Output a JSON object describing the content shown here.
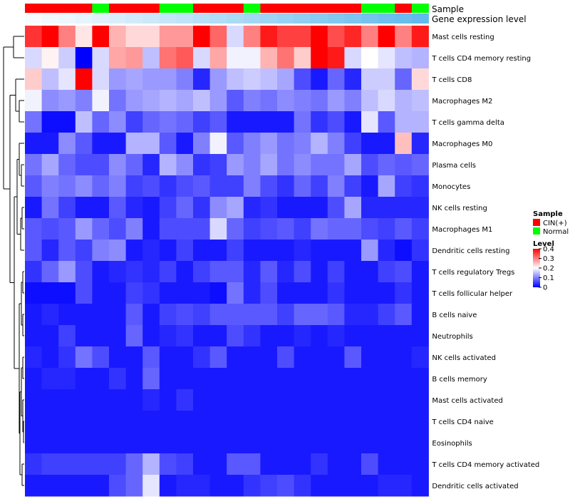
{
  "chart_data": {
    "type": "heatmap",
    "title": "",
    "annotation_tracks": [
      {
        "name": "Sample",
        "values": [
          "CIN(+)",
          "CIN(+)",
          "CIN(+)",
          "CIN(+)",
          "Normal",
          "CIN(+)",
          "CIN(+)",
          "CIN(+)",
          "Normal",
          "Normal",
          "CIN(+)",
          "CIN(+)",
          "CIN(+)",
          "Normal",
          "CIN(+)",
          "CIN(+)",
          "CIN(+)",
          "CIN(+)",
          "CIN(+)",
          "CIN(+)",
          "Normal",
          "Normal",
          "CIN(+)",
          "Normal"
        ]
      },
      {
        "name": "Gene expression level",
        "values": [
          0.05,
          0.08,
          0.11,
          0.15,
          0.19,
          0.23,
          0.27,
          0.31,
          0.35,
          0.39,
          0.43,
          0.47,
          0.51,
          0.55,
          0.59,
          0.63,
          0.67,
          0.71,
          0.75,
          0.79,
          0.83,
          0.87,
          0.91,
          0.95
        ]
      }
    ],
    "rows": [
      "Mast cells resting",
      "T cells CD4 memory resting",
      "T cells CD8",
      "Macrophages M2",
      "T cells gamma delta",
      "Macrophages M0",
      "Plasma cells",
      "Monocytes",
      "NK cells resting",
      "Macrophages M1",
      "Dendritic cells resting",
      "T cells regulatory  Tregs",
      "T cells follicular helper",
      "B cells naive",
      "Neutrophils",
      "NK cells activated",
      "B cells memory",
      "Mast cells activated",
      "T cells CD4 naive",
      "Eosinophils",
      "T cells CD4 memory activated",
      "Dendritic cells activated"
    ],
    "matrix": [
      [
        0.36,
        0.4,
        0.3,
        0.22,
        0.4,
        0.26,
        0.23,
        0.23,
        0.28,
        0.28,
        0.4,
        0.32,
        0.17,
        0.3,
        0.38,
        0.35,
        0.35,
        0.4,
        0.34,
        0.37,
        0.3,
        0.4,
        0.3,
        0.38
      ],
      [
        0.17,
        0.21,
        0.16,
        0.0,
        0.17,
        0.27,
        0.28,
        0.15,
        0.31,
        0.33,
        0.17,
        0.27,
        0.19,
        0.19,
        0.26,
        0.31,
        0.24,
        0.4,
        0.38,
        0.17,
        0.2,
        0.18,
        0.15,
        0.14
      ],
      [
        0.24,
        0.15,
        0.18,
        0.4,
        0.17,
        0.12,
        0.13,
        0.12,
        0.12,
        0.1,
        0.03,
        0.12,
        0.15,
        0.16,
        0.15,
        0.13,
        0.06,
        0.02,
        0.08,
        0.03,
        0.16,
        0.16,
        0.08,
        0.23
      ],
      [
        0.19,
        0.11,
        0.12,
        0.1,
        0.19,
        0.09,
        0.12,
        0.13,
        0.14,
        0.13,
        0.15,
        0.12,
        0.07,
        0.1,
        0.09,
        0.11,
        0.1,
        0.09,
        0.12,
        0.1,
        0.15,
        0.17,
        0.14,
        0.15
      ],
      [
        0.09,
        0.01,
        0.01,
        0.15,
        0.08,
        0.11,
        0.05,
        0.08,
        0.09,
        0.08,
        0.05,
        0.07,
        0.02,
        0.02,
        0.02,
        0.02,
        0.09,
        0.04,
        0.06,
        0.02,
        0.18,
        0.07,
        0.14,
        0.14
      ],
      [
        0.02,
        0.02,
        0.11,
        0.07,
        0.02,
        0.02,
        0.14,
        0.14,
        0.07,
        0.02,
        0.1,
        0.19,
        0.07,
        0.1,
        0.12,
        0.09,
        0.1,
        0.14,
        0.1,
        0.05,
        0.02,
        0.02,
        0.25,
        0.03
      ],
      [
        0.09,
        0.13,
        0.08,
        0.06,
        0.06,
        0.11,
        0.08,
        0.03,
        0.14,
        0.11,
        0.04,
        0.05,
        0.12,
        0.1,
        0.13,
        0.09,
        0.11,
        0.09,
        0.09,
        0.13,
        0.06,
        0.08,
        0.07,
        0.08
      ],
      [
        0.07,
        0.1,
        0.09,
        0.11,
        0.08,
        0.1,
        0.05,
        0.06,
        0.04,
        0.06,
        0.07,
        0.05,
        0.05,
        0.1,
        0.06,
        0.04,
        0.08,
        0.05,
        0.1,
        0.05,
        0.02,
        0.13,
        0.05,
        0.04
      ],
      [
        0.02,
        0.09,
        0.05,
        0.02,
        0.02,
        0.07,
        0.03,
        0.02,
        0.05,
        0.08,
        0.04,
        0.11,
        0.13,
        0.03,
        0.04,
        0.02,
        0.02,
        0.02,
        0.06,
        0.13,
        0.03,
        0.03,
        0.03,
        0.03
      ],
      [
        0.07,
        0.06,
        0.07,
        0.12,
        0.08,
        0.06,
        0.1,
        0.02,
        0.06,
        0.06,
        0.06,
        0.17,
        0.08,
        0.05,
        0.06,
        0.07,
        0.05,
        0.09,
        0.08,
        0.08,
        0.06,
        0.05,
        0.07,
        0.05
      ],
      [
        0.07,
        0.03,
        0.07,
        0.05,
        0.1,
        0.11,
        0.02,
        0.03,
        0.02,
        0.05,
        0.02,
        0.02,
        0.05,
        0.02,
        0.02,
        0.02,
        0.03,
        0.02,
        0.02,
        0.02,
        0.12,
        0.03,
        0.01,
        0.04
      ],
      [
        0.04,
        0.08,
        0.12,
        0.06,
        0.02,
        0.03,
        0.04,
        0.03,
        0.05,
        0.02,
        0.05,
        0.07,
        0.07,
        0.03,
        0.07,
        0.03,
        0.06,
        0.02,
        0.05,
        0.02,
        0.02,
        0.05,
        0.06,
        0.02
      ],
      [
        0.01,
        0.01,
        0.01,
        0.06,
        0.02,
        0.02,
        0.05,
        0.04,
        0.02,
        0.02,
        0.02,
        0.01,
        0.09,
        0.03,
        0.06,
        0.02,
        0.02,
        0.02,
        0.04,
        0.02,
        0.02,
        0.02,
        0.04,
        0.02
      ],
      [
        0.02,
        0.03,
        0.02,
        0.02,
        0.02,
        0.02,
        0.07,
        0.02,
        0.05,
        0.06,
        0.05,
        0.07,
        0.07,
        0.07,
        0.07,
        0.05,
        0.08,
        0.08,
        0.07,
        0.03,
        0.03,
        0.05,
        0.07,
        0.02
      ],
      [
        0.02,
        0.02,
        0.05,
        0.02,
        0.02,
        0.02,
        0.08,
        0.02,
        0.03,
        0.04,
        0.02,
        0.02,
        0.06,
        0.04,
        0.02,
        0.02,
        0.03,
        0.02,
        0.03,
        0.02,
        0.02,
        0.02,
        0.02,
        0.02
      ],
      [
        0.03,
        0.02,
        0.04,
        0.09,
        0.06,
        0.02,
        0.02,
        0.07,
        0.02,
        0.02,
        0.04,
        0.07,
        0.02,
        0.02,
        0.02,
        0.06,
        0.02,
        0.02,
        0.02,
        0.07,
        0.02,
        0.02,
        0.02,
        0.03
      ],
      [
        0.02,
        0.03,
        0.03,
        0.02,
        0.02,
        0.04,
        0.02,
        0.08,
        0.02,
        0.02,
        0.02,
        0.02,
        0.02,
        0.02,
        0.02,
        0.02,
        0.02,
        0.02,
        0.02,
        0.02,
        0.02,
        0.02,
        0.02,
        0.02
      ],
      [
        0.02,
        0.02,
        0.02,
        0.02,
        0.02,
        0.02,
        0.02,
        0.03,
        0.02,
        0.04,
        0.02,
        0.02,
        0.02,
        0.02,
        0.02,
        0.02,
        0.02,
        0.02,
        0.02,
        0.02,
        0.02,
        0.02,
        0.02,
        0.02
      ],
      [
        0.02,
        0.02,
        0.02,
        0.02,
        0.02,
        0.02,
        0.02,
        0.02,
        0.02,
        0.02,
        0.02,
        0.02,
        0.02,
        0.02,
        0.02,
        0.02,
        0.02,
        0.02,
        0.02,
        0.02,
        0.02,
        0.02,
        0.02,
        0.02
      ],
      [
        0.02,
        0.02,
        0.02,
        0.02,
        0.02,
        0.02,
        0.02,
        0.02,
        0.02,
        0.02,
        0.02,
        0.02,
        0.02,
        0.02,
        0.02,
        0.02,
        0.02,
        0.02,
        0.02,
        0.02,
        0.02,
        0.02,
        0.02,
        0.02
      ],
      [
        0.04,
        0.05,
        0.05,
        0.05,
        0.05,
        0.05,
        0.08,
        0.14,
        0.06,
        0.05,
        0.02,
        0.02,
        0.07,
        0.07,
        0.02,
        0.02,
        0.02,
        0.04,
        0.02,
        0.02,
        0.06,
        0.02,
        0.02,
        0.02
      ],
      [
        0.02,
        0.02,
        0.02,
        0.02,
        0.02,
        0.06,
        0.08,
        0.18,
        0.02,
        0.03,
        0.03,
        0.02,
        0.02,
        0.04,
        0.05,
        0.06,
        0.04,
        0.02,
        0.02,
        0.02,
        0.02,
        0.03,
        0.03,
        0.02
      ]
    ],
    "color_scale": {
      "min": 0,
      "max": 0.4,
      "colors": [
        "#0000ff",
        "#ffffff",
        "#ff0000"
      ]
    },
    "legend": {
      "sample_title": "Sample",
      "sample_entries": [
        {
          "label": "CIN(+)",
          "color": "#ff0000"
        },
        {
          "label": "Normal",
          "color": "#00ff00"
        }
      ],
      "level_title": "Level",
      "level_ticks": [
        "0.4",
        "0.3",
        "0.2",
        "0.1",
        "0"
      ],
      "level_values": [
        0.4,
        0.3,
        0.2,
        0.1,
        0
      ]
    },
    "gene_expr_colors": {
      "low": "#ffffff",
      "high": "#5ab6ec"
    }
  }
}
